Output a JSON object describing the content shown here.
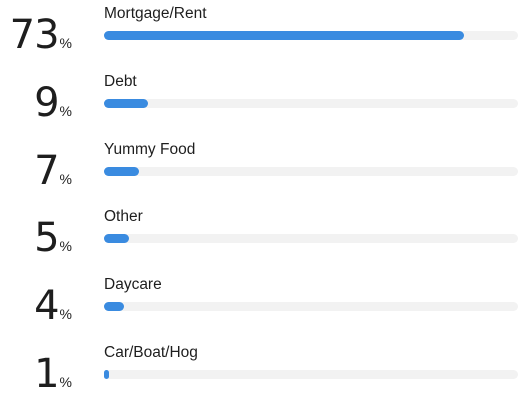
{
  "chart_data": {
    "type": "bar",
    "orientation": "horizontal",
    "categories": [
      "Mortgage/Rent",
      "Debt",
      "Yummy Food",
      "Other",
      "Daycare",
      "Car/Boat/Hog"
    ],
    "values": [
      73,
      9,
      7,
      5,
      4,
      1
    ],
    "value_suffix": "%",
    "xlim": [
      0,
      100
    ],
    "grid": false,
    "legend": "none",
    "colors": {
      "bar_fill": "#3a8be0",
      "track": "#f2f2f2",
      "text": "#1e1e1e"
    }
  }
}
